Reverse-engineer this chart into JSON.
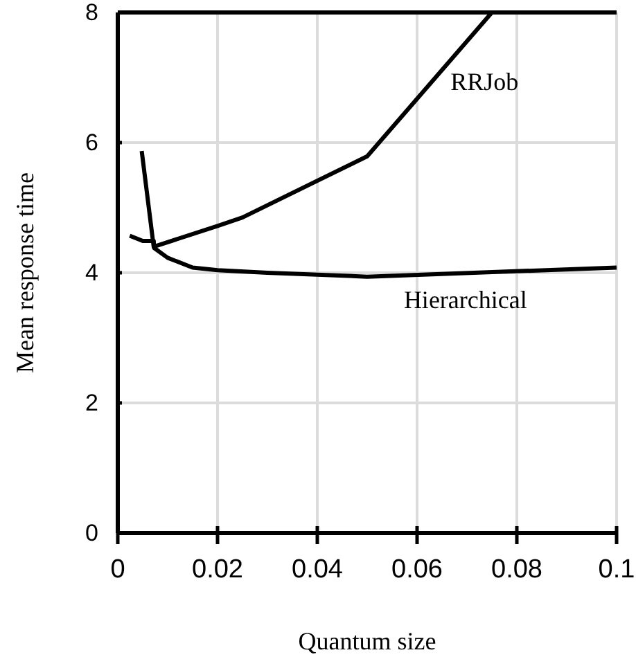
{
  "chart_data": {
    "type": "line",
    "xlabel": "Quantum size",
    "ylabel": "Mean response time",
    "xlim": [
      0,
      0.1
    ],
    "xticks": [
      0,
      0.02,
      0.04,
      0.06,
      0.08,
      0.1
    ],
    "ylim": [
      0,
      8
    ],
    "yticks": [
      0,
      2,
      4,
      6,
      8
    ],
    "grid": true,
    "legend": false,
    "marker": "none",
    "line_style": "solid",
    "series": [
      {
        "name": "RRJob",
        "color": "#000000",
        "x": [
          0.0048,
          0.0072,
          0.02,
          0.025,
          0.05,
          0.075
        ],
        "values": [
          5.87,
          4.4,
          4.72,
          4.85,
          5.79,
          8
        ]
      },
      {
        "name": "Hierarchical",
        "color": "#000000",
        "x": [
          0.0024,
          0.005,
          0.0072,
          0.0073,
          0.01,
          0.015,
          0.02,
          0.03,
          0.05,
          0.1
        ],
        "values": [
          4.57,
          4.49,
          4.49,
          4.38,
          4.23,
          4.08,
          4.04,
          4.0,
          3.94,
          4.08
        ]
      }
    ]
  }
}
